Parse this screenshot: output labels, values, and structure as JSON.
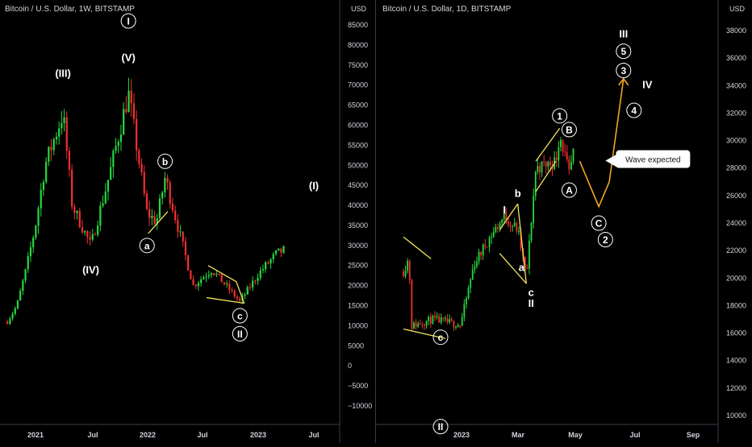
{
  "colors": {
    "background": "#000000",
    "up_candle": "#26d940",
    "down_candle": "#f23030",
    "wedge_line": "#f2e35b",
    "projection": "#f5a623",
    "text": "#ffffff",
    "axis_text": "#d1d4dc",
    "divider": "#3a3e4a"
  },
  "left_chart": {
    "title": "Bitcoin / U.S. Dollar, 1W, BITSTAMP",
    "currency": "USD"
  },
  "right_chart": {
    "title": "Bitcoin / U.S. Dollar, 1D, BITSTAMP",
    "currency": "USD",
    "callout": "Wave expected"
  },
  "chart_data": [
    {
      "type": "candlestick",
      "title": "Bitcoin / U.S. Dollar, 1W, BITSTAMP",
      "ylabel": "USD",
      "ylim": [
        -15000,
        90000
      ],
      "yticks": [
        "85000",
        "80000",
        "75000",
        "70000",
        "65000",
        "60000",
        "55000",
        "50000",
        "45000",
        "40000",
        "35000",
        "30000",
        "25000",
        "20000",
        "15000",
        "10000",
        "5000",
        "0",
        "−5000",
        "−10000"
      ],
      "xticks": [
        "2021",
        "Jul",
        "2022",
        "Jul",
        "2023",
        "Jul"
      ],
      "price_path": [
        {
          "date": "2020-10",
          "close": 11000
        },
        {
          "date": "2020-11",
          "close": 15000
        },
        {
          "date": "2020-12",
          "close": 24000
        },
        {
          "date": "2021-01",
          "close": 35000
        },
        {
          "date": "2021-02",
          "close": 50000
        },
        {
          "date": "2021-04",
          "close": 63000
        },
        {
          "date": "2021-05",
          "close": 40000
        },
        {
          "date": "2021-07",
          "close": 30000
        },
        {
          "date": "2021-09",
          "close": 48000
        },
        {
          "date": "2021-11",
          "close": 68000
        },
        {
          "date": "2022-01",
          "close": 38000
        },
        {
          "date": "2022-02",
          "close": 36000
        },
        {
          "date": "2022-03",
          "close": 47000
        },
        {
          "date": "2022-06",
          "close": 20000
        },
        {
          "date": "2022-08",
          "close": 24000
        },
        {
          "date": "2022-11",
          "close": 16000
        },
        {
          "date": "2023-01",
          "close": 23000
        },
        {
          "date": "2023-03",
          "close": 28000
        },
        {
          "date": "2023-04",
          "close": 29000
        }
      ],
      "wave_labels": [
        {
          "label": "(III)",
          "date": "2021-04",
          "price": 73000
        },
        {
          "label": "I",
          "date": "2021-11",
          "price": 86000,
          "circled": true
        },
        {
          "label": "(V)",
          "date": "2021-11",
          "price": 77000
        },
        {
          "label": "(IV)",
          "date": "2021-07",
          "price": 24000
        },
        {
          "label": "b",
          "date": "2022-03",
          "price": 51000,
          "circled": true
        },
        {
          "label": "a",
          "date": "2022-01",
          "price": 30000,
          "circled": true
        },
        {
          "label": "c",
          "date": "2022-11",
          "price": 12500,
          "circled": true
        },
        {
          "label": "II",
          "date": "2022-11",
          "price": 8000,
          "circled": true
        },
        {
          "label": "(I)",
          "date": "2023-07",
          "price": 45000
        }
      ]
    },
    {
      "type": "candlestick",
      "title": "Bitcoin / U.S. Dollar, 1D, BITSTAMP",
      "ylabel": "USD",
      "ylim": [
        10000,
        39000
      ],
      "yticks": [
        "38000",
        "36000",
        "34000",
        "32000",
        "30000",
        "28000",
        "26000",
        "24000",
        "22000",
        "20000",
        "18000",
        "16000",
        "14000",
        "12000",
        "10000"
      ],
      "xticks": [
        "2023",
        "Mar",
        "May",
        "Jul",
        "Sep"
      ],
      "price_path": [
        {
          "date": "2022-11-01",
          "close": 20500
        },
        {
          "date": "2022-11-07",
          "close": 21500
        },
        {
          "date": "2022-11-09",
          "close": 16500
        },
        {
          "date": "2022-12-01",
          "close": 17000
        },
        {
          "date": "2022-12-31",
          "close": 16600
        },
        {
          "date": "2023-01-14",
          "close": 21000
        },
        {
          "date": "2023-01-31",
          "close": 23000
        },
        {
          "date": "2023-02-15",
          "close": 24500
        },
        {
          "date": "2023-03-01",
          "close": 23500
        },
        {
          "date": "2023-03-10",
          "close": 20000
        },
        {
          "date": "2023-03-20",
          "close": 28000
        },
        {
          "date": "2023-04-10",
          "close": 28500
        },
        {
          "date": "2023-04-14",
          "close": 30500
        },
        {
          "date": "2023-04-24",
          "close": 27500
        },
        {
          "date": "2023-04-29",
          "close": 29300
        }
      ],
      "projection_path": [
        {
          "date": "2023-05-05",
          "price": 28500
        },
        {
          "date": "2023-05-25",
          "price": 25200
        },
        {
          "date": "2023-06-05",
          "price": 27000
        },
        {
          "date": "2023-06-20",
          "price": 34500
        }
      ],
      "wave_labels": [
        {
          "label": "III",
          "date": "2023-06-20",
          "price": 37800
        },
        {
          "label": "5",
          "date": "2023-06-20",
          "price": 36500,
          "circled": true
        },
        {
          "label": "3",
          "date": "2023-06-20",
          "price": 35100,
          "circled": true
        },
        {
          "label": "IV",
          "date": "2023-07-15",
          "price": 34100
        },
        {
          "label": "4",
          "date": "2023-07-01",
          "price": 32200,
          "circled": true
        },
        {
          "label": "1",
          "date": "2023-04-14",
          "price": 31800,
          "circled": true
        },
        {
          "label": "B",
          "date": "2023-04-24",
          "price": 30800,
          "circled": true
        },
        {
          "label": "A",
          "date": "2023-04-24",
          "price": 26400,
          "circled": true
        },
        {
          "label": "C",
          "date": "2023-05-25",
          "price": 24000,
          "circled": true
        },
        {
          "label": "2",
          "date": "2023-06-01",
          "price": 22800,
          "circled": true
        },
        {
          "label": "b",
          "date": "2023-03-01",
          "price": 26200
        },
        {
          "label": "I",
          "date": "2023-02-15",
          "price": 25000
        },
        {
          "label": "a",
          "date": "2023-03-05",
          "price": 20800
        },
        {
          "label": "c",
          "date": "2023-03-15",
          "price": 19000
        },
        {
          "label": "II",
          "date": "2023-03-15",
          "price": 18200
        },
        {
          "label": "c",
          "date": "2022-12-10",
          "price": 15700,
          "circled": true
        },
        {
          "label": "II",
          "date": "2022-12-10",
          "price": 9200,
          "circled": true
        }
      ]
    }
  ]
}
